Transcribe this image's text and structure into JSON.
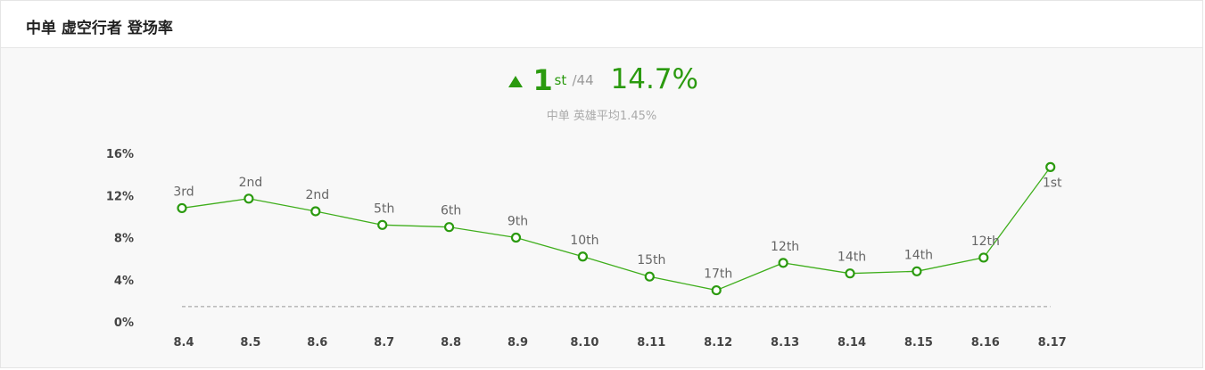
{
  "title": "中单 虚空行者 登场率",
  "summary": {
    "rank": "1",
    "rank_suffix": "st",
    "rank_total": "/44",
    "rate": "14.7%",
    "average_note": "中单 英雄平均1.45%",
    "trend_icon": "up-arrow-icon"
  },
  "colors": {
    "accent": "#2b9a0f",
    "line": "#3fae1c",
    "average_line": "#999999",
    "background": "#f8f8f8"
  },
  "chart_data": {
    "type": "line",
    "title": "中单 虚空行者 登场率",
    "categories": [
      "8.4",
      "8.5",
      "8.6",
      "8.7",
      "8.8",
      "8.9",
      "8.10",
      "8.11",
      "8.12",
      "8.13",
      "8.14",
      "8.15",
      "8.16",
      "8.17"
    ],
    "values": [
      10.8,
      11.7,
      10.5,
      9.2,
      9.0,
      8.0,
      6.2,
      4.3,
      3.0,
      5.6,
      4.6,
      4.8,
      6.1,
      14.7
    ],
    "point_labels": [
      "3rd",
      "2nd",
      "2nd",
      "5th",
      "6th",
      "9th",
      "10th",
      "15th",
      "17th",
      "12th",
      "14th",
      "14th",
      "12th",
      "1st"
    ],
    "average": 1.45,
    "ylim": [
      0,
      16
    ],
    "y_ticks": [
      0,
      4,
      8,
      12,
      16
    ],
    "y_tick_labels": [
      "0%",
      "4%",
      "8%",
      "12%",
      "16%"
    ],
    "xlabel": "",
    "ylabel": "",
    "grid": false,
    "legend": "none"
  }
}
